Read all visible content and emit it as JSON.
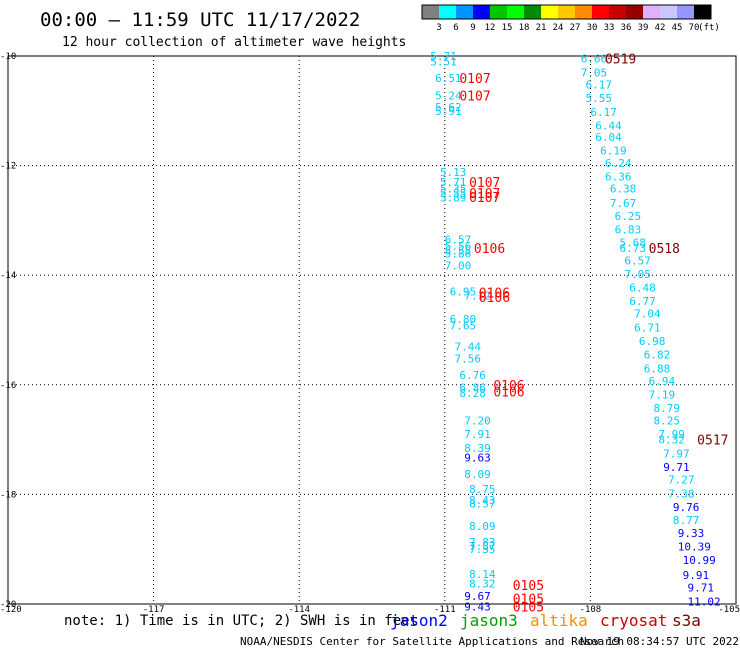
{
  "chart_data": {
    "type": "scatter",
    "title": "00:00 – 11:59 UTC 11/17/2022",
    "subtitle": "12 hour collection of altimeter wave heights",
    "xlim": [
      -120,
      -105
    ],
    "ylim": [
      -20,
      -10
    ],
    "x_ticks": [
      "-120",
      "-117",
      "-114",
      "-111",
      "-108",
      "-105"
    ],
    "y_ticks": [
      "-10",
      "-12",
      "-14",
      "-16",
      "-18",
      "-20"
    ],
    "grid": true,
    "colorbar": {
      "unit": "(ft)",
      "labels": [
        "3",
        "6",
        "9",
        "12",
        "15",
        "18",
        "21",
        "24",
        "27",
        "30",
        "33",
        "36",
        "39",
        "42",
        "45",
        "70"
      ],
      "colors": [
        "#808080",
        "#00ffff",
        "#0096ff",
        "#0000ff",
        "#00c800",
        "#00ff00",
        "#008c00",
        "#ffff00",
        "#ffc800",
        "#ff8c00",
        "#ff0000",
        "#c80000",
        "#960000",
        "#e0b0ff",
        "#c8c8ff",
        "#9696ff",
        "#000000"
      ]
    },
    "series": [
      {
        "name": "jason2",
        "color": "#0000ff"
      },
      {
        "name": "jason3",
        "color": "#00a000"
      },
      {
        "name": "altika",
        "color": "#ff8c00"
      },
      {
        "name": "cryosat",
        "color": "#c80000"
      },
      {
        "name": "s3a",
        "color": "#800000"
      }
    ],
    "wave_heights": [
      {
        "x": -111.3,
        "y": -10.0,
        "label": "5.71",
        "color": "#00ccff"
      },
      {
        "x": -111.3,
        "y": -10.1,
        "label": "5.51",
        "color": "#00ccff"
      },
      {
        "x": -111.2,
        "y": -10.4,
        "label": "6.51",
        "color": "#00ccff"
      },
      {
        "x": -111.2,
        "y": -10.72,
        "label": "5.24",
        "color": "#00ccff"
      },
      {
        "x": -111.2,
        "y": -10.93,
        "label": "5.62",
        "color": "#00ccff"
      },
      {
        "x": -111.2,
        "y": -11.0,
        "label": "5.91",
        "color": "#00ccff"
      },
      {
        "x": -111.1,
        "y": -12.12,
        "label": "5.13",
        "color": "#00ccff"
      },
      {
        "x": -111.1,
        "y": -12.3,
        "label": "5.71",
        "color": "#00ccff"
      },
      {
        "x": -111.1,
        "y": -12.42,
        "label": "5.35",
        "color": "#00ccff"
      },
      {
        "x": -111.1,
        "y": -12.5,
        "label": "5.55",
        "color": "#00ccff"
      },
      {
        "x": -111.1,
        "y": -12.58,
        "label": "5.89",
        "color": "#00ccff"
      },
      {
        "x": -111.0,
        "y": -13.35,
        "label": "6.57",
        "color": "#00ccff"
      },
      {
        "x": -111.0,
        "y": -13.47,
        "label": "5.56",
        "color": "#00ccff"
      },
      {
        "x": -111.0,
        "y": -13.55,
        "label": "5.55",
        "color": "#00ccff"
      },
      {
        "x": -111.0,
        "y": -13.6,
        "label": "5.86",
        "color": "#00ccff"
      },
      {
        "x": -111.0,
        "y": -13.82,
        "label": "7.00",
        "color": "#00ccff"
      },
      {
        "x": -110.9,
        "y": -14.3,
        "label": "6.95",
        "color": "#00ccff"
      },
      {
        "x": -110.6,
        "y": -14.37,
        "label": "7.12",
        "color": "#00ccff"
      },
      {
        "x": -110.9,
        "y": -14.8,
        "label": "6.80",
        "color": "#00ccff"
      },
      {
        "x": -110.9,
        "y": -14.92,
        "label": "7.65",
        "color": "#00ccff"
      },
      {
        "x": -110.8,
        "y": -15.3,
        "label": "7.44",
        "color": "#00ccff"
      },
      {
        "x": -110.8,
        "y": -15.52,
        "label": "7.56",
        "color": "#00ccff"
      },
      {
        "x": -110.7,
        "y": -15.82,
        "label": "6.76",
        "color": "#00ccff"
      },
      {
        "x": -110.7,
        "y": -16.05,
        "label": "6.86",
        "color": "#00ccff"
      },
      {
        "x": -110.7,
        "y": -16.15,
        "label": "8.28",
        "color": "#00ccff"
      },
      {
        "x": -110.6,
        "y": -16.65,
        "label": "7.20",
        "color": "#00ccff"
      },
      {
        "x": -110.6,
        "y": -16.9,
        "label": "7.91",
        "color": "#00ccff"
      },
      {
        "x": -110.6,
        "y": -17.15,
        "label": "8.39",
        "color": "#00ccff"
      },
      {
        "x": -110.6,
        "y": -17.33,
        "label": "9.63",
        "color": "#0000ff"
      },
      {
        "x": -110.6,
        "y": -17.63,
        "label": "8.09",
        "color": "#00ccff"
      },
      {
        "x": -110.5,
        "y": -17.9,
        "label": "8.75",
        "color": "#00ccff"
      },
      {
        "x": -110.5,
        "y": -18.1,
        "label": "8.43",
        "color": "#00ccff"
      },
      {
        "x": -110.5,
        "y": -18.17,
        "label": "8.57",
        "color": "#00ccff"
      },
      {
        "x": -110.5,
        "y": -18.58,
        "label": "8.09",
        "color": "#00ccff"
      },
      {
        "x": -110.5,
        "y": -18.87,
        "label": "7.83",
        "color": "#00ccff"
      },
      {
        "x": -110.5,
        "y": -18.94,
        "label": "7.87",
        "color": "#00ccff"
      },
      {
        "x": -110.5,
        "y": -19.0,
        "label": "7.35",
        "color": "#00ccff"
      },
      {
        "x": -110.5,
        "y": -19.45,
        "label": "8.14",
        "color": "#00ccff"
      },
      {
        "x": -110.5,
        "y": -19.63,
        "label": "8.32",
        "color": "#00ccff"
      },
      {
        "x": -110.6,
        "y": -19.85,
        "label": "9.67",
        "color": "#0000ff"
      },
      {
        "x": -110.6,
        "y": -20.05,
        "label": "9.43",
        "color": "#0000ff"
      },
      {
        "x": -108.2,
        "y": -10.05,
        "label": "6.66",
        "color": "#00ccff"
      },
      {
        "x": -108.2,
        "y": -10.3,
        "label": "7.05",
        "color": "#00ccff"
      },
      {
        "x": -108.1,
        "y": -10.52,
        "label": "6.17",
        "color": "#00ccff"
      },
      {
        "x": -108.1,
        "y": -10.77,
        "label": "5.55",
        "color": "#00ccff"
      },
      {
        "x": -108.0,
        "y": -11.02,
        "label": "6.17",
        "color": "#00ccff"
      },
      {
        "x": -107.9,
        "y": -11.27,
        "label": "6.44",
        "color": "#00ccff"
      },
      {
        "x": -107.9,
        "y": -11.48,
        "label": "6.04",
        "color": "#00ccff"
      },
      {
        "x": -107.8,
        "y": -11.72,
        "label": "6.19",
        "color": "#00ccff"
      },
      {
        "x": -107.7,
        "y": -11.95,
        "label": "6.24",
        "color": "#00ccff"
      },
      {
        "x": -107.7,
        "y": -12.2,
        "label": "6.36",
        "color": "#00ccff"
      },
      {
        "x": -107.6,
        "y": -12.42,
        "label": "6.38",
        "color": "#00ccff"
      },
      {
        "x": -107.6,
        "y": -12.68,
        "label": "7.67",
        "color": "#00ccff"
      },
      {
        "x": -107.5,
        "y": -12.92,
        "label": "6.25",
        "color": "#00ccff"
      },
      {
        "x": -107.5,
        "y": -13.17,
        "label": "6.83",
        "color": "#00ccff"
      },
      {
        "x": -107.4,
        "y": -13.4,
        "label": "5.68",
        "color": "#00ccff"
      },
      {
        "x": -107.4,
        "y": -13.5,
        "label": "6.73",
        "color": "#00ccff"
      },
      {
        "x": -107.3,
        "y": -13.73,
        "label": "6.57",
        "color": "#00ccff"
      },
      {
        "x": -107.3,
        "y": -13.98,
        "label": "7.05",
        "color": "#00ccff"
      },
      {
        "x": -107.2,
        "y": -14.22,
        "label": "6.48",
        "color": "#00ccff"
      },
      {
        "x": -107.2,
        "y": -14.47,
        "label": "6.77",
        "color": "#00ccff"
      },
      {
        "x": -107.1,
        "y": -14.7,
        "label": "7.04",
        "color": "#00ccff"
      },
      {
        "x": -107.1,
        "y": -14.95,
        "label": "6.71",
        "color": "#00ccff"
      },
      {
        "x": -107.0,
        "y": -15.2,
        "label": "6.98",
        "color": "#00ccff"
      },
      {
        "x": -106.9,
        "y": -15.45,
        "label": "6.82",
        "color": "#00ccff"
      },
      {
        "x": -106.9,
        "y": -15.7,
        "label": "6.88",
        "color": "#00ccff"
      },
      {
        "x": -106.8,
        "y": -15.93,
        "label": "6.94",
        "color": "#00ccff"
      },
      {
        "x": -106.8,
        "y": -16.18,
        "label": "7.19",
        "color": "#00ccff"
      },
      {
        "x": -106.7,
        "y": -16.42,
        "label": "8.79",
        "color": "#00ccff"
      },
      {
        "x": -106.7,
        "y": -16.65,
        "label": "8.25",
        "color": "#00ccff"
      },
      {
        "x": -106.6,
        "y": -16.9,
        "label": "7.99",
        "color": "#00ccff"
      },
      {
        "x": -106.6,
        "y": -17.0,
        "label": "8.32",
        "color": "#00ccff"
      },
      {
        "x": -106.5,
        "y": -17.25,
        "label": "7.97",
        "color": "#00ccff"
      },
      {
        "x": -106.5,
        "y": -17.5,
        "label": "9.71",
        "color": "#0000ff"
      },
      {
        "x": -106.4,
        "y": -17.73,
        "label": "7.27",
        "color": "#00ccff"
      },
      {
        "x": -106.4,
        "y": -17.98,
        "label": "7.38",
        "color": "#00ccff"
      },
      {
        "x": -106.3,
        "y": -18.23,
        "label": "9.76",
        "color": "#0000ff"
      },
      {
        "x": -106.3,
        "y": -18.47,
        "label": "8.77",
        "color": "#00ccff"
      },
      {
        "x": -106.2,
        "y": -18.7,
        "label": "9.33",
        "color": "#0000ff"
      },
      {
        "x": -106.2,
        "y": -18.95,
        "label": "10.39",
        "color": "#0000ff"
      },
      {
        "x": -106.1,
        "y": -19.2,
        "label": "10.99",
        "color": "#0000ff"
      },
      {
        "x": -106.1,
        "y": -19.47,
        "label": "9.91",
        "color": "#0000ff"
      },
      {
        "x": -106.0,
        "y": -19.7,
        "label": "9.71",
        "color": "#0000ff"
      },
      {
        "x": -106.0,
        "y": -19.95,
        "label": "11.02",
        "color": "#0000ff"
      }
    ],
    "pass_times": [
      {
        "x": -110.7,
        "y": -10.4,
        "label": "0107",
        "color": "#ff0000"
      },
      {
        "x": -110.7,
        "y": -10.72,
        "label": "0107",
        "color": "#ff0000"
      },
      {
        "x": -110.5,
        "y": -12.3,
        "label": "0107",
        "color": "#ff0000"
      },
      {
        "x": -110.5,
        "y": -12.5,
        "label": "0107",
        "color": "#ff0000"
      },
      {
        "x": -110.5,
        "y": -12.57,
        "label": "0107",
        "color": "#ff0000"
      },
      {
        "x": -110.4,
        "y": -13.5,
        "label": "0106",
        "color": "#ff0000"
      },
      {
        "x": -110.3,
        "y": -14.32,
        "label": "0106",
        "color": "#ff0000"
      },
      {
        "x": -110.3,
        "y": -14.4,
        "label": "0106",
        "color": "#ff0000"
      },
      {
        "x": -110.0,
        "y": -16.0,
        "label": "0106",
        "color": "#ff0000"
      },
      {
        "x": -110.0,
        "y": -16.12,
        "label": "0106",
        "color": "#ff0000"
      },
      {
        "x": -109.6,
        "y": -19.65,
        "label": "0105",
        "color": "#ff0000"
      },
      {
        "x": -109.6,
        "y": -19.9,
        "label": "0105",
        "color": "#ff0000"
      },
      {
        "x": -109.6,
        "y": -20.05,
        "label": "0105",
        "color": "#ff0000"
      },
      {
        "x": -107.7,
        "y": -10.05,
        "label": "0519",
        "color": "#800000"
      },
      {
        "x": -106.8,
        "y": -13.5,
        "label": "0518",
        "color": "#800000"
      },
      {
        "x": -105.8,
        "y": -17.0,
        "label": "0517",
        "color": "#800000"
      }
    ]
  },
  "footer": {
    "note": "note: 1) Time is in UTC; 2) SWH is in feet",
    "credit": "NOAA/NESDIS Center for Satellite Applications and Research",
    "timestamp": "Nov 19 08:34:57 UTC 2022"
  }
}
